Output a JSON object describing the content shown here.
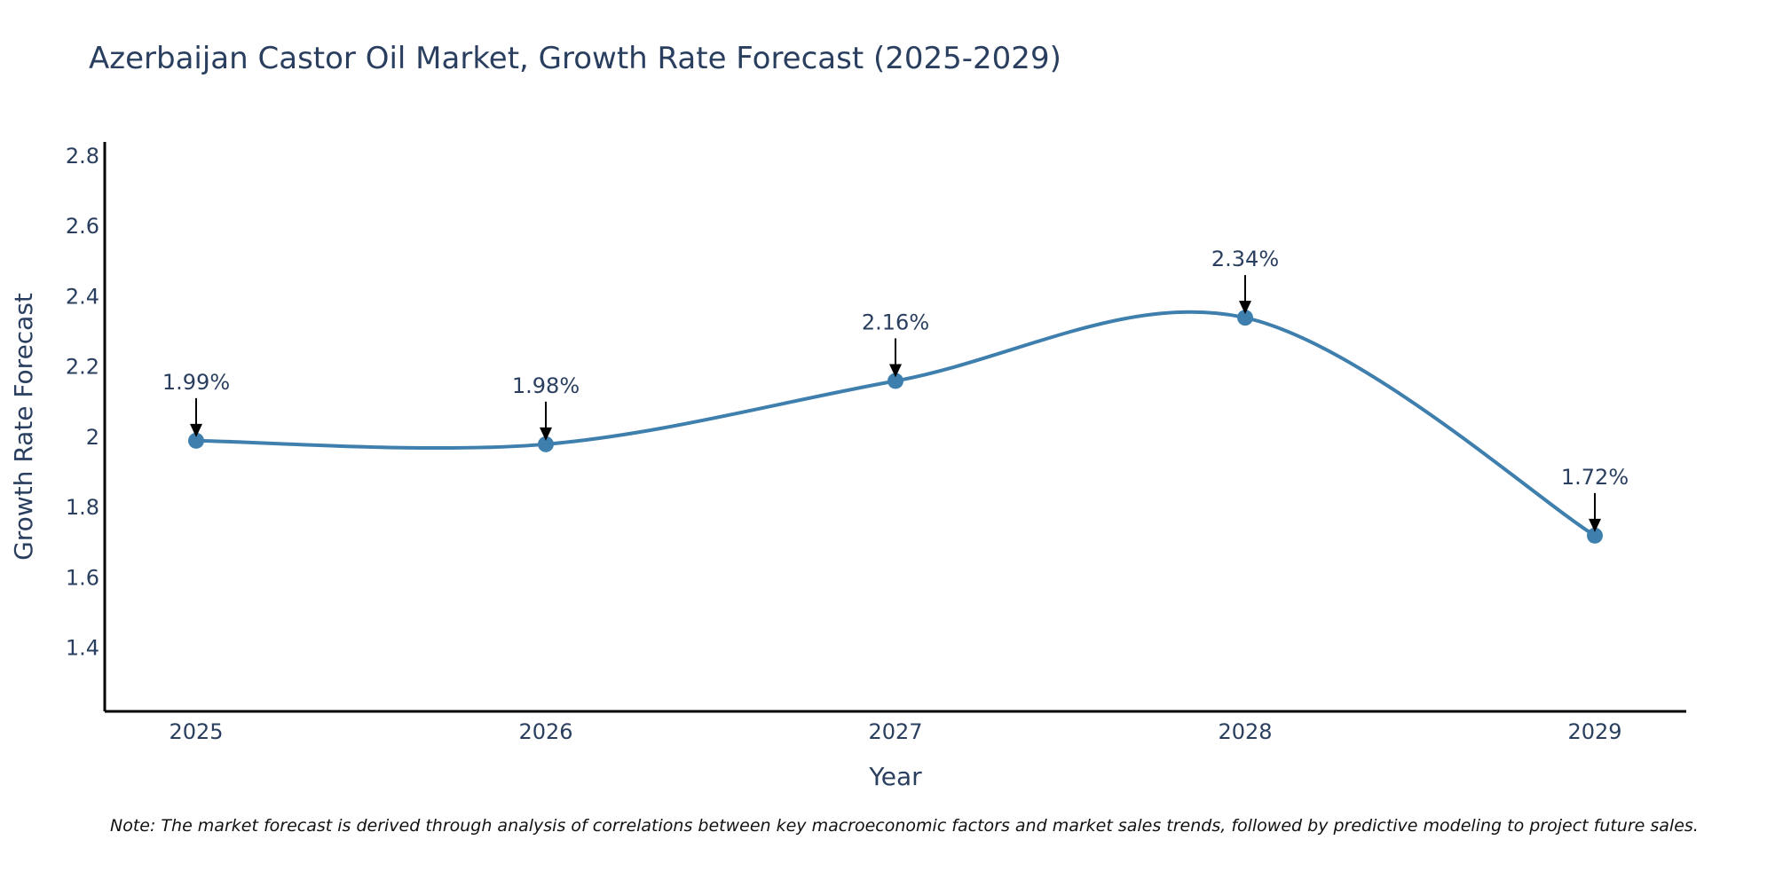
{
  "chart_data": {
    "type": "line",
    "title": "Azerbaijan Castor Oil Market, Growth Rate Forecast (2025-2029)",
    "xlabel": "Year",
    "ylabel": "Growth Rate Forecast",
    "categories": [
      "2025",
      "2026",
      "2027",
      "2028",
      "2029"
    ],
    "series": [
      {
        "name": "Growth Rate Forecast",
        "values": [
          1.99,
          1.98,
          2.16,
          2.34,
          1.72
        ]
      }
    ],
    "annotations": [
      "1.99%",
      "1.98%",
      "2.16%",
      "2.34%",
      "1.72%"
    ],
    "ylim": [
      1.22,
      2.84
    ],
    "yticks": [
      1.4,
      1.6,
      1.8,
      2,
      2.2,
      2.4,
      2.6,
      2.8
    ],
    "ytick_labels": [
      "1.4",
      "1.6",
      "1.8",
      "2",
      "2.2",
      "2.4",
      "2.6",
      "2.8"
    ],
    "line_color": "#3e7fad",
    "grid": false,
    "note": "Note: The market forecast is derived through analysis of correlations between key macroeconomic factors and market sales trends, followed by predictive modeling to project future sales."
  }
}
